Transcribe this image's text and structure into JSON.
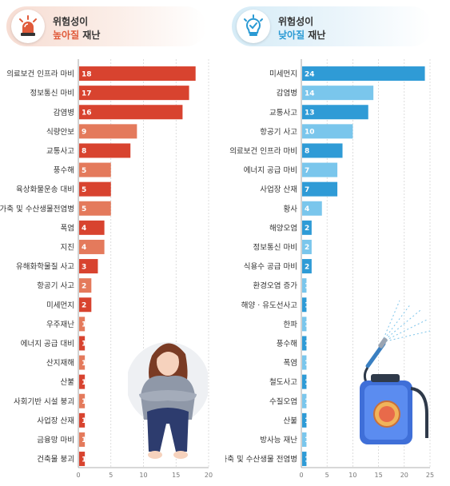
{
  "left": {
    "header": {
      "line1": "위험성이",
      "highlight": "높아질",
      "rest": " 재난"
    },
    "icon": "siren-icon",
    "accent": "#e05a3a"
  },
  "right": {
    "header": {
      "line1": "위험성이",
      "highlight": "낮아질",
      "rest": " 재난"
    },
    "icon": "lightbulb-check-icon",
    "accent": "#2a9ad4"
  },
  "chart_data": [
    {
      "type": "bar",
      "orientation": "horizontal",
      "categories": [
        "의료보건 인프라 마비",
        "정보통신 마비",
        "감염병",
        "식량안보",
        "교통사고",
        "풍수해",
        "육상화물운송 대비",
        "가축 및 수산생물전염병",
        "폭염",
        "지진",
        "유해화학물질 사고",
        "항공기 사고",
        "미세먼지",
        "우주재난",
        "에너지 공급 대비",
        "산지재해",
        "산불",
        "사회기반 시설 붕괴",
        "사업장 산재",
        "금융망 마비",
        "건축물 붕괴"
      ],
      "values": [
        18,
        17,
        16,
        9,
        8,
        5,
        5,
        5,
        4,
        4,
        3,
        2,
        2,
        1,
        1,
        1,
        1,
        1,
        1,
        1,
        1
      ],
      "xlim": [
        0,
        20
      ],
      "ticks": [
        0,
        5,
        10,
        15,
        20
      ],
      "colors": [
        "#d8432f",
        "#d8432f",
        "#d8432f",
        "#e47a5c",
        "#d8432f",
        "#e47a5c",
        "#d8432f",
        "#e47a5c",
        "#d8432f",
        "#e47a5c",
        "#d8432f",
        "#e47a5c",
        "#d8432f",
        "#e47a5c",
        "#d8432f",
        "#e47a5c",
        "#d8432f",
        "#e47a5c",
        "#d8432f",
        "#e47a5c",
        "#d8432f"
      ],
      "grid": true
    },
    {
      "type": "bar",
      "orientation": "horizontal",
      "categories": [
        "미세먼지",
        "감염병",
        "교통사고",
        "항공기 사고",
        "의료보건 인프라 마비",
        "에너지 공급 마비",
        "사업장 산재",
        "황사",
        "해양오염",
        "정보통신 마비",
        "식용수 공급 마비",
        "환경오염 증가",
        "해양 · 유도선사고",
        "한파",
        "풍수해",
        "폭염",
        "철도사고",
        "수질오염",
        "산불",
        "방사능 재난",
        "가축 및 수산생물 전염병"
      ],
      "values": [
        24,
        14,
        13,
        10,
        8,
        7,
        7,
        4,
        2,
        2,
        2,
        1,
        1,
        1,
        1,
        1,
        1,
        1,
        1,
        1,
        1
      ],
      "xlim": [
        0,
        25
      ],
      "ticks": [
        0,
        5,
        10,
        15,
        20,
        25
      ],
      "colors": [
        "#2f9bd6",
        "#7ac6ec",
        "#2f9bd6",
        "#7ac6ec",
        "#2f9bd6",
        "#7ac6ec",
        "#2f9bd6",
        "#7ac6ec",
        "#2f9bd6",
        "#7ac6ec",
        "#2f9bd6",
        "#7ac6ec",
        "#2f9bd6",
        "#7ac6ec",
        "#2f9bd6",
        "#7ac6ec",
        "#2f9bd6",
        "#7ac6ec",
        "#2f9bd6",
        "#7ac6ec",
        "#2f9bd6"
      ],
      "grid": true
    }
  ]
}
